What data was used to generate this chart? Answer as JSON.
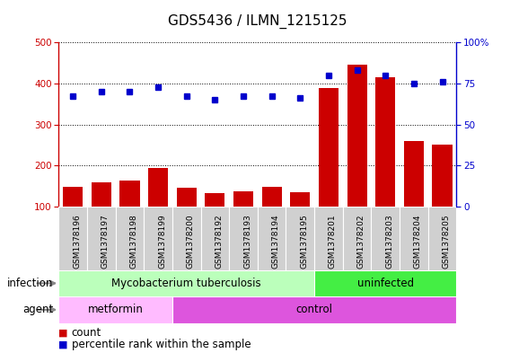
{
  "title": "GDS5436 / ILMN_1215125",
  "samples": [
    "GSM1378196",
    "GSM1378197",
    "GSM1378198",
    "GSM1378199",
    "GSM1378200",
    "GSM1378192",
    "GSM1378193",
    "GSM1378194",
    "GSM1378195",
    "GSM1378201",
    "GSM1378202",
    "GSM1378203",
    "GSM1378204",
    "GSM1378205"
  ],
  "counts": [
    148,
    158,
    163,
    193,
    145,
    132,
    138,
    147,
    135,
    388,
    445,
    415,
    260,
    250
  ],
  "percentiles": [
    67,
    70,
    70,
    73,
    67,
    65,
    67,
    67,
    66,
    80,
    83,
    80,
    75,
    76
  ],
  "ylim_left": [
    100,
    500
  ],
  "ylim_right": [
    0,
    100
  ],
  "yticks_left": [
    100,
    200,
    300,
    400,
    500
  ],
  "yticks_right": [
    0,
    25,
    50,
    75,
    100
  ],
  "bar_color": "#cc0000",
  "dot_color": "#0000cc",
  "sample_box_color": "#d0d0d0",
  "infection_groups": [
    {
      "label": "Mycobacterium tuberculosis",
      "start": 0,
      "end": 9,
      "color": "#bbffbb"
    },
    {
      "label": "uninfected",
      "start": 9,
      "end": 14,
      "color": "#44ee44"
    }
  ],
  "agent_groups": [
    {
      "label": "metformin",
      "start": 0,
      "end": 4,
      "color": "#ffbbff"
    },
    {
      "label": "control",
      "start": 4,
      "end": 14,
      "color": "#dd55dd"
    }
  ],
  "infection_label": "infection",
  "agent_label": "agent",
  "legend_count": "count",
  "legend_percentile": "percentile rank within the sample",
  "background_color": "#ffffff",
  "plot_bg": "#ffffff",
  "title_fontsize": 11,
  "tick_fontsize": 7.5,
  "label_fontsize": 8.5,
  "sample_fontsize": 6.5
}
